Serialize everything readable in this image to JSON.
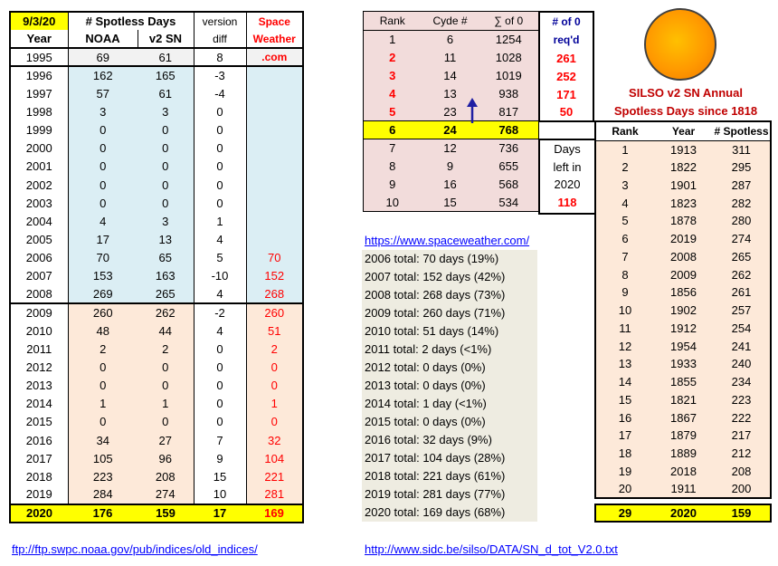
{
  "left_table": {
    "header1": [
      "9/3/20",
      "# Spotless Days",
      "version",
      "Space"
    ],
    "header2": [
      "Year",
      "NOAA",
      "v2 SN",
      "diff",
      "Weather"
    ],
    "com_label": ".com",
    "rows": [
      {
        "year": "1995",
        "noaa": "69",
        "v2": "61",
        "diff": "8",
        "sw": ""
      },
      {
        "year": "1996",
        "noaa": "162",
        "v2": "165",
        "diff": "-3",
        "sw": ""
      },
      {
        "year": "1997",
        "noaa": "57",
        "v2": "61",
        "diff": "-4",
        "sw": ""
      },
      {
        "year": "1998",
        "noaa": "3",
        "v2": "3",
        "diff": "0",
        "sw": ""
      },
      {
        "year": "1999",
        "noaa": "0",
        "v2": "0",
        "diff": "0",
        "sw": ""
      },
      {
        "year": "2000",
        "noaa": "0",
        "v2": "0",
        "diff": "0",
        "sw": ""
      },
      {
        "year": "2001",
        "noaa": "0",
        "v2": "0",
        "diff": "0",
        "sw": ""
      },
      {
        "year": "2002",
        "noaa": "0",
        "v2": "0",
        "diff": "0",
        "sw": ""
      },
      {
        "year": "2003",
        "noaa": "0",
        "v2": "0",
        "diff": "0",
        "sw": ""
      },
      {
        "year": "2004",
        "noaa": "4",
        "v2": "3",
        "diff": "1",
        "sw": ""
      },
      {
        "year": "2005",
        "noaa": "17",
        "v2": "13",
        "diff": "4",
        "sw": ""
      },
      {
        "year": "2006",
        "noaa": "70",
        "v2": "65",
        "diff": "5",
        "sw": "70"
      },
      {
        "year": "2007",
        "noaa": "153",
        "v2": "163",
        "diff": "-10",
        "sw": "152"
      },
      {
        "year": "2008",
        "noaa": "269",
        "v2": "265",
        "diff": "4",
        "sw": "268"
      },
      {
        "year": "2009",
        "noaa": "260",
        "v2": "262",
        "diff": "-2",
        "sw": "260"
      },
      {
        "year": "2010",
        "noaa": "48",
        "v2": "44",
        "diff": "4",
        "sw": "51"
      },
      {
        "year": "2011",
        "noaa": "2",
        "v2": "2",
        "diff": "0",
        "sw": "2"
      },
      {
        "year": "2012",
        "noaa": "0",
        "v2": "0",
        "diff": "0",
        "sw": "0"
      },
      {
        "year": "2013",
        "noaa": "0",
        "v2": "0",
        "diff": "0",
        "sw": "0"
      },
      {
        "year": "2014",
        "noaa": "1",
        "v2": "1",
        "diff": "0",
        "sw": "1"
      },
      {
        "year": "2015",
        "noaa": "0",
        "v2": "0",
        "diff": "0",
        "sw": "0"
      },
      {
        "year": "2016",
        "noaa": "34",
        "v2": "27",
        "diff": "7",
        "sw": "32"
      },
      {
        "year": "2017",
        "noaa": "105",
        "v2": "96",
        "diff": "9",
        "sw": "104"
      },
      {
        "year": "2018",
        "noaa": "223",
        "v2": "208",
        "diff": "15",
        "sw": "221"
      },
      {
        "year": "2019",
        "noaa": "284",
        "v2": "274",
        "diff": "10",
        "sw": "281"
      }
    ],
    "total_row": {
      "year": "2020",
      "noaa": "176",
      "v2": "159",
      "diff": "17",
      "sw": "169"
    }
  },
  "cycle_table": {
    "headers": [
      "Rank",
      "Cyde #",
      "∑ of 0",
      "# of 0",
      "req'd"
    ],
    "rows": [
      {
        "rank": "1",
        "cycle": "6",
        "sum": "1254",
        "req": ""
      },
      {
        "rank": "2",
        "cycle": "11",
        "sum": "1028",
        "req": "261"
      },
      {
        "rank": "3",
        "cycle": "14",
        "sum": "1019",
        "req": "252"
      },
      {
        "rank": "4",
        "cycle": "13",
        "sum": "938",
        "req": "171"
      },
      {
        "rank": "5",
        "cycle": "23",
        "sum": "817",
        "req": "50"
      },
      {
        "rank": "6",
        "cycle": "24",
        "sum": "768",
        "req": ""
      },
      {
        "rank": "7",
        "cycle": "12",
        "sum": "736",
        "req": ""
      },
      {
        "rank": "8",
        "cycle": "9",
        "sum": "655",
        "req": ""
      },
      {
        "rank": "9",
        "cycle": "16",
        "sum": "568",
        "req": ""
      },
      {
        "rank": "10",
        "cycle": "15",
        "sum": "534",
        "req": ""
      }
    ],
    "days_left": {
      "line1": "Days",
      "line2": "left in",
      "line3": "2020",
      "value": "118"
    },
    "arrow_icon": "up-arrow"
  },
  "spaceweather_link": "https://www.spaceweather.com/",
  "totals": [
    "2006 total: 70 days (19%)",
    "2007 total: 152 days (42%)",
    "2008 total: 268 days (73%)",
    "2009 total: 260 days (71%)",
    "2010 total: 51 days (14%)",
    "2011 total: 2 days (<1%)",
    "2012 total: 0 days (0%)",
    "2013 total: 0 days (0%)",
    "2014 total: 1 day (<1%)",
    "2015 total: 0 days (0%)",
    "2016 total: 32 days (9%)",
    "2017 total: 104 days (28%)",
    "2018 total: 221 days (61%)",
    "2019 total: 281 days (77%)",
    "2020 total: 169 days (68%)"
  ],
  "silso_title": {
    "line1": "SILSO v2 SN Annual",
    "line2": "Spotless Days since 1818"
  },
  "silso_table": {
    "headers": [
      "Rank",
      "Year",
      "# Spotless"
    ],
    "rows": [
      {
        "rank": "1",
        "year": "1913",
        "spotless": "311"
      },
      {
        "rank": "2",
        "year": "1822",
        "spotless": "295"
      },
      {
        "rank": "3",
        "year": "1901",
        "spotless": "287"
      },
      {
        "rank": "4",
        "year": "1823",
        "spotless": "282"
      },
      {
        "rank": "5",
        "year": "1878",
        "spotless": "280"
      },
      {
        "rank": "6",
        "year": "2019",
        "spotless": "274"
      },
      {
        "rank": "7",
        "year": "2008",
        "spotless": "265"
      },
      {
        "rank": "8",
        "year": "2009",
        "spotless": "262"
      },
      {
        "rank": "9",
        "year": "1856",
        "spotless": "261"
      },
      {
        "rank": "10",
        "year": "1902",
        "spotless": "257"
      },
      {
        "rank": "11",
        "year": "1912",
        "spotless": "254"
      },
      {
        "rank": "12",
        "year": "1954",
        "spotless": "241"
      },
      {
        "rank": "13",
        "year": "1933",
        "spotless": "240"
      },
      {
        "rank": "14",
        "year": "1855",
        "spotless": "234"
      },
      {
        "rank": "15",
        "year": "1821",
        "spotless": "223"
      },
      {
        "rank": "16",
        "year": "1867",
        "spotless": "222"
      },
      {
        "rank": "17",
        "year": "1879",
        "spotless": "217"
      },
      {
        "rank": "18",
        "year": "1889",
        "spotless": "212"
      },
      {
        "rank": "19",
        "year": "2018",
        "spotless": "208"
      },
      {
        "rank": "20",
        "year": "1911",
        "spotless": "200"
      }
    ],
    "current": {
      "rank": "29",
      "year": "2020",
      "spotless": "159"
    }
  },
  "footer_links": {
    "noaa": "ftp://ftp.swpc.noaa.gov/pub/indices/old_indices/",
    "sidc": "http://www.sidc.be/silso/DATA/SN_d_tot_V2.0.txt"
  },
  "colors": {
    "yellow": "#ffff00",
    "red": "#ff0000",
    "navy": "#000099",
    "blue_fill": "#dbeef4",
    "peach_fill": "#fde9d9",
    "pink_fill": "#f2dcdb",
    "beige_fill": "#eeece1",
    "sun": "#ff9900"
  }
}
